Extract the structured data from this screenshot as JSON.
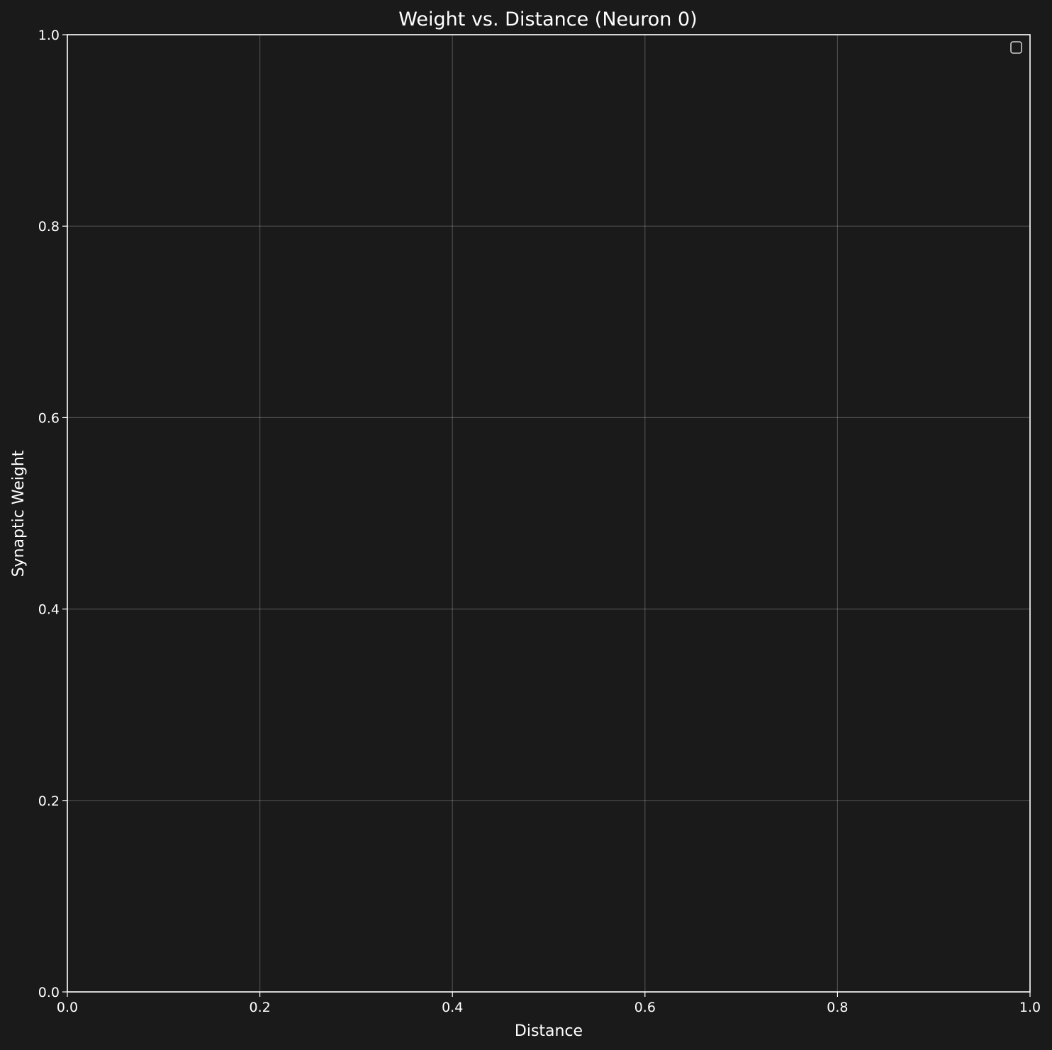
{
  "chart_data": {
    "type": "scatter",
    "title": "Weight vs. Distance (Neuron 0)",
    "xlabel": "Distance",
    "ylabel": "Synaptic Weight",
    "xlim": [
      0,
      1
    ],
    "ylim": [
      0,
      1
    ],
    "x_ticks": [
      "0.0",
      "0.2",
      "0.4",
      "0.6",
      "0.8",
      "1.0"
    ],
    "y_ticks": [
      "0.0",
      "0.2",
      "0.4",
      "0.6",
      "0.8",
      "1.0"
    ],
    "series": [],
    "grid": true,
    "legend_position": "top-right",
    "colors": {
      "background": "#1a1a1a",
      "foreground": "#ffffff",
      "grid": "#ffffff"
    }
  }
}
